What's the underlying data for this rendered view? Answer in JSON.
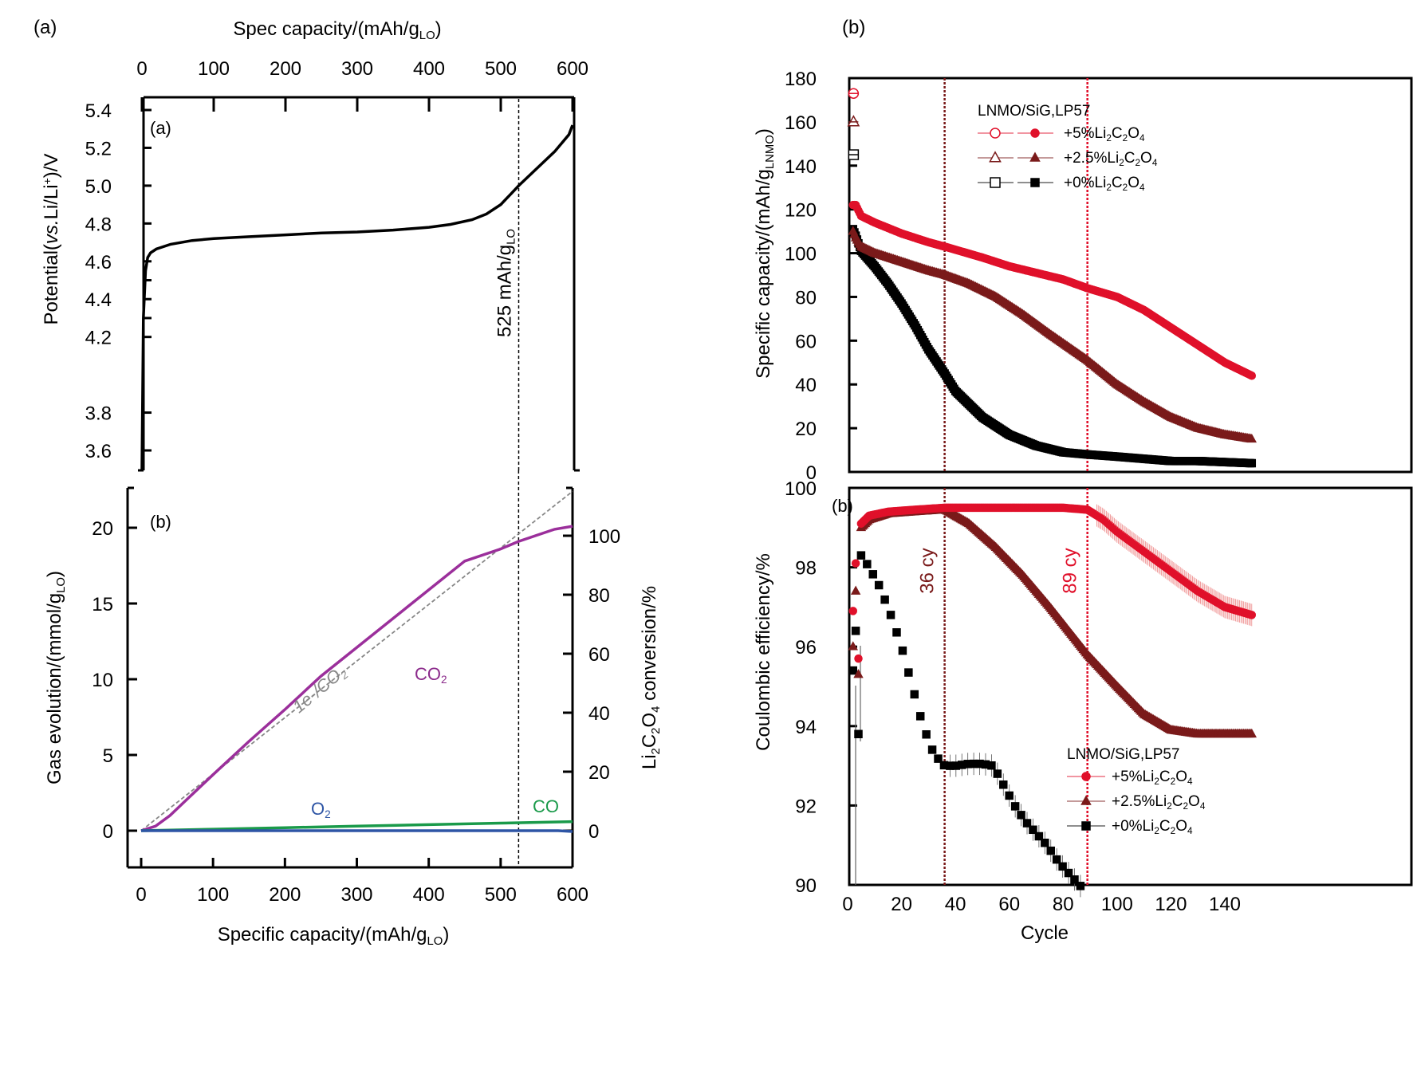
{
  "panel_labels": {
    "left": "(a)",
    "right": "(b)"
  },
  "chart_data": [
    {
      "id": "potential",
      "type": "line",
      "inner_label": "(a)",
      "title": "",
      "top_xlabel": "Spec capacity/(mAh/g_LO)",
      "xlabel": "",
      "ylabel": "Potential(vs.Li/Li+)/V",
      "xlim": [
        -20,
        600
      ],
      "ylim": [
        3.5,
        5.45
      ],
      "xticks": [
        0,
        100,
        200,
        300,
        400,
        500,
        600
      ],
      "yticks": [
        3.6,
        3.8,
        4.2,
        4.4,
        4.6,
        4.8,
        5.0,
        5.2,
        5.4
      ],
      "ytick_labels": [
        "3.6",
        "3.8",
        "4.2",
        "4.4",
        "4.6",
        "4.8",
        "5.0",
        "5.2",
        "5.4"
      ],
      "vline": {
        "x": 525,
        "label": "525 mAh/g_LO",
        "style": "dashed",
        "color": "#000000"
      },
      "series": [
        {
          "name": "potential",
          "color": "#000000",
          "x": [
            0,
            2,
            5,
            8,
            12,
            20,
            40,
            70,
            100,
            150,
            200,
            250,
            300,
            350,
            400,
            430,
            460,
            480,
            500,
            515,
            525,
            550,
            575,
            595,
            600
          ],
          "y": [
            3.5,
            4.3,
            4.55,
            4.62,
            4.645,
            4.665,
            4.69,
            4.71,
            4.72,
            4.73,
            4.74,
            4.75,
            4.755,
            4.765,
            4.78,
            4.795,
            4.82,
            4.85,
            4.9,
            4.96,
            5.0,
            5.09,
            5.18,
            5.27,
            5.32
          ]
        }
      ]
    },
    {
      "id": "gas-evolution",
      "type": "line",
      "inner_label": "(b)",
      "xlabel": "Specific capacity/(mAh/g_LO)",
      "ylabel": "Gas evolution/(mmol/g_LO)",
      "y2label": "Li2C2O4 conversion/%",
      "xlim": [
        -20,
        600
      ],
      "ylim": [
        -2.4,
        22.5
      ],
      "y2lim": [
        -12,
        112.5
      ],
      "xticks": [
        0,
        100,
        200,
        300,
        400,
        500,
        600
      ],
      "yticks": [
        0,
        5,
        10,
        15,
        20
      ],
      "y2ticks": [
        0,
        20,
        40,
        60,
        80,
        100
      ],
      "vline": {
        "x": 525,
        "style": "dashed",
        "color": "#000000"
      },
      "annotations": [
        {
          "text": "1e-/CO2",
          "color": "#888888"
        },
        {
          "text": "CO2",
          "color": "#8b2a8b"
        },
        {
          "text": "O2",
          "color": "#2e55a5"
        },
        {
          "text": "CO",
          "color": "#1a9a4a"
        }
      ],
      "series": [
        {
          "name": "1e-/CO2",
          "color": "#888888",
          "dashed": true,
          "x": [
            0,
            600
          ],
          "y": [
            0,
            22.4
          ]
        },
        {
          "name": "CO2",
          "color": "#9b2f9b",
          "x": [
            0,
            20,
            40,
            60,
            80,
            100,
            150,
            200,
            250,
            300,
            350,
            400,
            450,
            500,
            525,
            550,
            575,
            600
          ],
          "y": [
            0,
            0.3,
            1.0,
            1.9,
            2.8,
            3.7,
            5.9,
            8.0,
            10.2,
            12.1,
            14.0,
            15.9,
            17.8,
            18.6,
            19.1,
            19.5,
            19.9,
            20.1
          ]
        },
        {
          "name": "CO",
          "color": "#1a9a4a",
          "x": [
            0,
            100,
            200,
            300,
            400,
            500,
            600
          ],
          "y": [
            0,
            0.1,
            0.2,
            0.3,
            0.4,
            0.5,
            0.6
          ]
        },
        {
          "name": "O2",
          "color": "#2e55a5",
          "x": [
            0,
            300,
            580,
            600
          ],
          "y": [
            0,
            0,
            0,
            -0.05
          ]
        }
      ]
    },
    {
      "id": "specific-capacity",
      "type": "scatter",
      "xlabel": "",
      "ylabel": "Specific capacity/(mAh/g_LNMO)",
      "xlim": [
        -5,
        150
      ],
      "ylim": [
        0,
        180
      ],
      "yticks": [
        0,
        20,
        40,
        60,
        80,
        100,
        120,
        140,
        160,
        180
      ],
      "vlines": [
        {
          "x": 36,
          "color": "#7a1a1a"
        },
        {
          "x": 89,
          "color": "#e0102a"
        }
      ],
      "legend": {
        "title": "LNMO/SiG,LP57",
        "position": "top-right",
        "entries": [
          {
            "label": "+5%Li2C2O4",
            "color": "#e0102a",
            "marker": "circle"
          },
          {
            "label": "+2.5%Li2C2O4",
            "color": "#7a1a1a",
            "marker": "triangle"
          },
          {
            "label": "+0%Li2C2O4",
            "color": "#000000",
            "marker": "square"
          }
        ]
      },
      "first_cycle_points": [
        {
          "series": "+5%Li2C2O4",
          "x": 1,
          "y": 173,
          "marker": "circle"
        },
        {
          "series": "+2.5%Li2C2O4",
          "x": 1,
          "y": 160,
          "marker": "triangle"
        },
        {
          "series": "+0%Li2C2O4",
          "x": 1,
          "y": 145,
          "marker": "square"
        }
      ],
      "series": [
        {
          "name": "+5%Li2C2O4",
          "color": "#e0102a",
          "marker": "circle",
          "x": [
            2,
            3,
            5,
            10,
            20,
            30,
            36,
            50,
            60,
            70,
            80,
            89,
            100,
            110,
            120,
            130,
            140,
            150
          ],
          "y": [
            122,
            122,
            117,
            114,
            109,
            105,
            103,
            98,
            94,
            91,
            88,
            84,
            80,
            74,
            66,
            58,
            50,
            44
          ]
        },
        {
          "name": "+2.5%Li2C2O4",
          "color": "#7a1a1a",
          "marker": "triangle",
          "x": [
            2,
            3,
            5,
            10,
            20,
            30,
            36,
            45,
            55,
            65,
            75,
            89,
            100,
            110,
            120,
            130,
            140,
            150
          ],
          "y": [
            110,
            107,
            103,
            100,
            96,
            92,
            90,
            86,
            80,
            72,
            63,
            51,
            40,
            32,
            25,
            20,
            17,
            15
          ]
        },
        {
          "name": "+0%Li2C2O4",
          "color": "#000000",
          "marker": "square",
          "x": [
            2,
            3,
            5,
            10,
            15,
            20,
            25,
            30,
            36,
            40,
            50,
            60,
            70,
            80,
            89,
            100,
            110,
            120,
            130,
            140,
            150
          ],
          "y": [
            111,
            108,
            101,
            94,
            86,
            77,
            67,
            56,
            45,
            37,
            25,
            17,
            12,
            9,
            8,
            7,
            6,
            5,
            5,
            4.5,
            4
          ]
        }
      ]
    },
    {
      "id": "coulombic-efficiency",
      "type": "scatter",
      "inner_label": "(b)",
      "xlabel": "Cycle",
      "ylabel": "Coulombic efficiency/%",
      "xlim": [
        -5,
        150
      ],
      "ylim": [
        90,
        100
      ],
      "xticks": [
        0,
        20,
        40,
        60,
        80,
        100,
        120,
        140
      ],
      "yticks": [
        90,
        92,
        94,
        96,
        98,
        100
      ],
      "vlines": [
        {
          "x": 36,
          "color": "#7a1a1a",
          "label": "36 cy"
        },
        {
          "x": 89,
          "color": "#e0102a",
          "label": "89 cy"
        }
      ],
      "legend": {
        "title": "LNMO/SiG,LP57",
        "position": "bottom-right",
        "entries": [
          {
            "label": "+5%Li2C2O4",
            "color": "#e0102a",
            "marker": "circle"
          },
          {
            "label": "+2.5%Li2C2O4",
            "color": "#7a1a1a",
            "marker": "triangle"
          },
          {
            "label": "+0%Li2C2O4",
            "color": "#000000",
            "marker": "square"
          }
        ]
      },
      "series": [
        {
          "name": "+5%Li2C2O4",
          "color": "#e0102a",
          "marker": "circle",
          "x": [
            2,
            3,
            4,
            5,
            8,
            15,
            25,
            36,
            50,
            60,
            70,
            80,
            89,
            95,
            100,
            110,
            120,
            130,
            140,
            150
          ],
          "y": [
            96.9,
            98.1,
            95.7,
            99.1,
            99.3,
            99.4,
            99.45,
            99.5,
            99.5,
            99.5,
            99.5,
            99.5,
            99.45,
            99.2,
            98.9,
            98.4,
            97.9,
            97.4,
            97.0,
            96.8
          ]
        },
        {
          "name": "+2.5%Li2C2O4",
          "color": "#7a1a1a",
          "marker": "triangle",
          "x": [
            2,
            3,
            4,
            5,
            8,
            15,
            25,
            36,
            45,
            55,
            65,
            75,
            89,
            100,
            110,
            120,
            130,
            140,
            150
          ],
          "y": [
            96.0,
            97.4,
            95.3,
            99.0,
            99.2,
            99.35,
            99.4,
            99.45,
            99.1,
            98.5,
            97.8,
            97.0,
            95.8,
            95.0,
            94.3,
            93.9,
            93.8,
            93.8,
            93.8
          ]
        },
        {
          "name": "+0%Li2C2O4",
          "color": "#000000",
          "marker": "square",
          "x": [
            2,
            3,
            4,
            5,
            8,
            12,
            16,
            20,
            24,
            28,
            32,
            36,
            40,
            45,
            50,
            54,
            58,
            62,
            66,
            70,
            74,
            78,
            82,
            86,
            89
          ],
          "y": [
            95.4,
            96.4,
            93.8,
            98.3,
            98.0,
            97.5,
            96.8,
            96.0,
            95.0,
            94.0,
            93.3,
            93.0,
            93.0,
            93.05,
            93.05,
            93.0,
            92.5,
            92.0,
            91.6,
            91.3,
            91.0,
            90.6,
            90.3,
            90.0,
            89.8
          ]
        }
      ]
    }
  ]
}
